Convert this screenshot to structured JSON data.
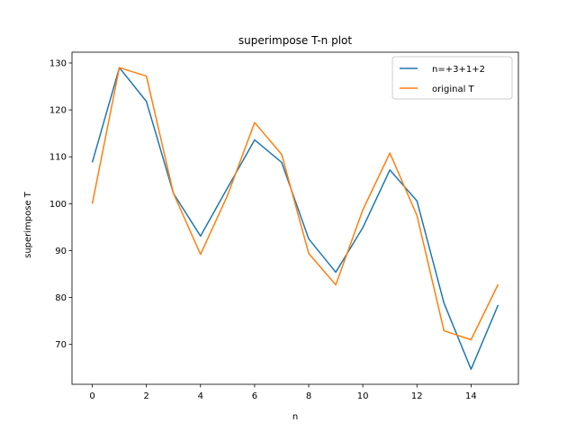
{
  "chart_data": {
    "type": "line",
    "title": "superimpose T-n plot",
    "xlabel": "n",
    "ylabel": "superimpose T",
    "x": [
      0,
      1,
      2,
      3,
      4,
      5,
      6,
      7,
      8,
      9,
      10,
      11,
      12,
      13,
      14,
      15
    ],
    "xlim": [
      -0.75,
      15.75
    ],
    "ylim": [
      61.5,
      132.3
    ],
    "xticks": [
      0,
      2,
      4,
      6,
      8,
      10,
      12,
      14
    ],
    "yticks": [
      70,
      80,
      90,
      100,
      110,
      120,
      130
    ],
    "grid": false,
    "legend_position": "upper right",
    "series": [
      {
        "name": "n=+3+1+2",
        "color": "#1f77b4",
        "values": [
          108.8,
          129.0,
          121.8,
          102.2,
          93.1,
          103.4,
          113.6,
          108.8,
          92.5,
          85.4,
          94.9,
          107.2,
          100.6,
          78.8,
          64.7,
          78.4
        ]
      },
      {
        "name": "original T",
        "color": "#ff7f0e",
        "values": [
          100.0,
          129.0,
          127.2,
          102.2,
          89.2,
          101.8,
          117.3,
          110.5,
          89.4,
          82.7,
          98.7,
          110.8,
          97.5,
          72.9,
          71.0,
          82.8
        ]
      }
    ]
  }
}
